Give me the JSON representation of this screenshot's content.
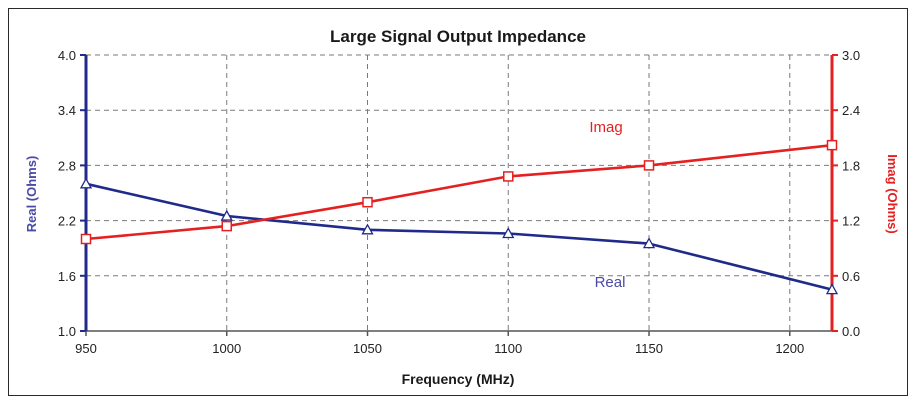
{
  "chart_data": {
    "type": "line",
    "title": "Large Signal Output Impedance",
    "xlabel": "Frequency (MHz)",
    "ylabel_left": "Real (Ohms)",
    "ylabel_right": "Imag (Ohms)",
    "x_ticks": [
      "950",
      "1000",
      "1050",
      "1100",
      "1150",
      "1200"
    ],
    "xlim": [
      950,
      1215
    ],
    "ylim_left": [
      1.0,
      4.0
    ],
    "ylim_right": [
      0.0,
      3.0
    ],
    "y_ticks_left": [
      "1.0",
      "1.6",
      "2.2",
      "2.8",
      "3.4",
      "4.0"
    ],
    "y_ticks_right": [
      "0.0",
      "0.6",
      "1.2",
      "1.8",
      "2.4",
      "3.0"
    ],
    "grid": true,
    "series": [
      {
        "name": "Real",
        "axis": "left",
        "color": "#1f2a8a",
        "marker": "triangle",
        "x": [
          950,
          1000,
          1050,
          1100,
          1150,
          1215
        ],
        "y": [
          2.6,
          2.25,
          2.1,
          2.06,
          1.95,
          1.45
        ]
      },
      {
        "name": "Imag",
        "axis": "right",
        "color": "#e52020",
        "marker": "square",
        "x": [
          950,
          1000,
          1050,
          1100,
          1150,
          1215
        ],
        "y": [
          1.0,
          1.14,
          1.4,
          1.68,
          1.8,
          2.02
        ]
      }
    ]
  }
}
